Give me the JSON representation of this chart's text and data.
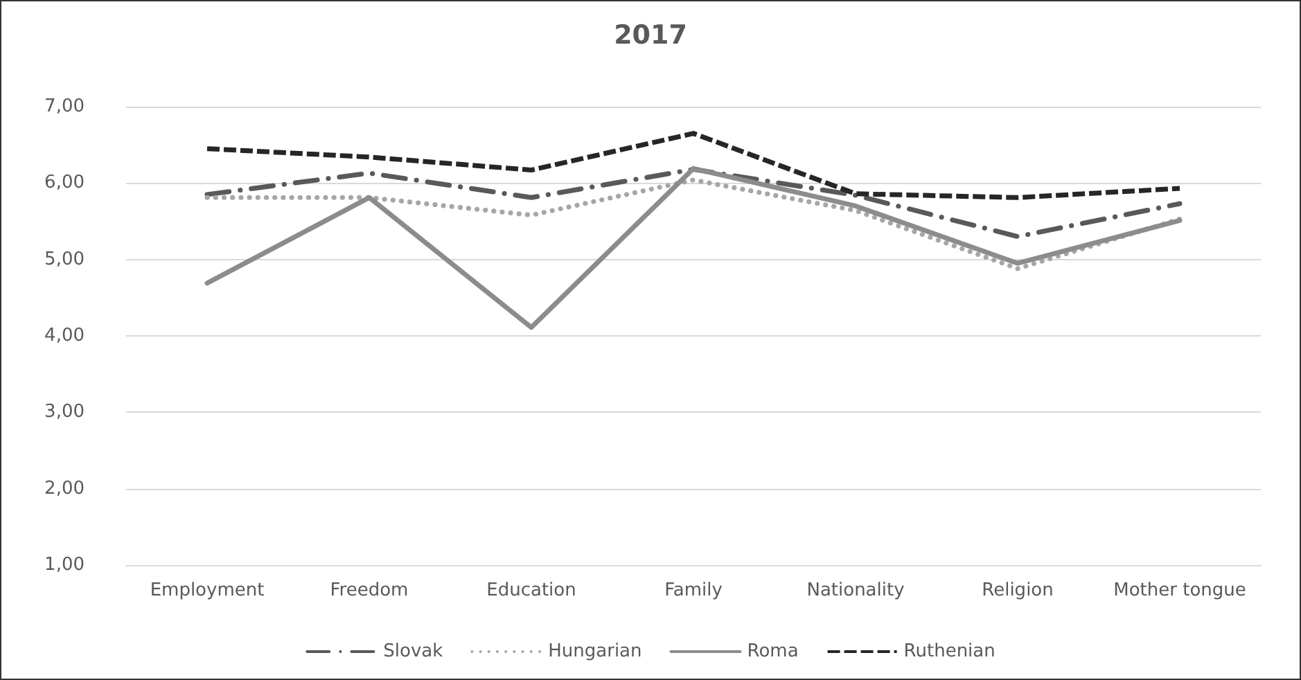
{
  "chart_data": {
    "type": "line",
    "title": "2017",
    "categories": [
      "Employment",
      "Freedom",
      "Education",
      "Family",
      "Nationality",
      "Religion",
      "Mother tongue"
    ],
    "series": [
      {
        "name": "Slovak",
        "color": "#595959",
        "line_style": "dashdot",
        "values": [
          5.85,
          6.13,
          5.81,
          6.18,
          5.84,
          5.3,
          5.73
        ]
      },
      {
        "name": "Hungarian",
        "color": "#a6a6a6",
        "line_style": "dotted",
        "values": [
          5.81,
          5.81,
          5.58,
          6.04,
          5.64,
          4.88,
          5.53
        ]
      },
      {
        "name": "Roma",
        "color": "#8c8c8c",
        "line_style": "solid",
        "values": [
          4.69,
          5.81,
          4.11,
          6.19,
          5.7,
          4.95,
          5.51
        ]
      },
      {
        "name": "Ruthenian",
        "color": "#262626",
        "line_style": "dashed",
        "values": [
          6.45,
          6.34,
          6.17,
          6.65,
          5.86,
          5.81,
          5.93
        ]
      }
    ],
    "ylim": [
      1,
      7
    ],
    "yticks": [
      {
        "value": 1,
        "label": "1,00"
      },
      {
        "value": 2,
        "label": "2,00"
      },
      {
        "value": 3,
        "label": "3,00"
      },
      {
        "value": 4,
        "label": "4,00"
      },
      {
        "value": 5,
        "label": "5,00"
      },
      {
        "value": 6,
        "label": "6,00"
      },
      {
        "value": 7,
        "label": "7,00"
      }
    ],
    "grid": "y",
    "legend": "bottom",
    "marker": "none"
  }
}
